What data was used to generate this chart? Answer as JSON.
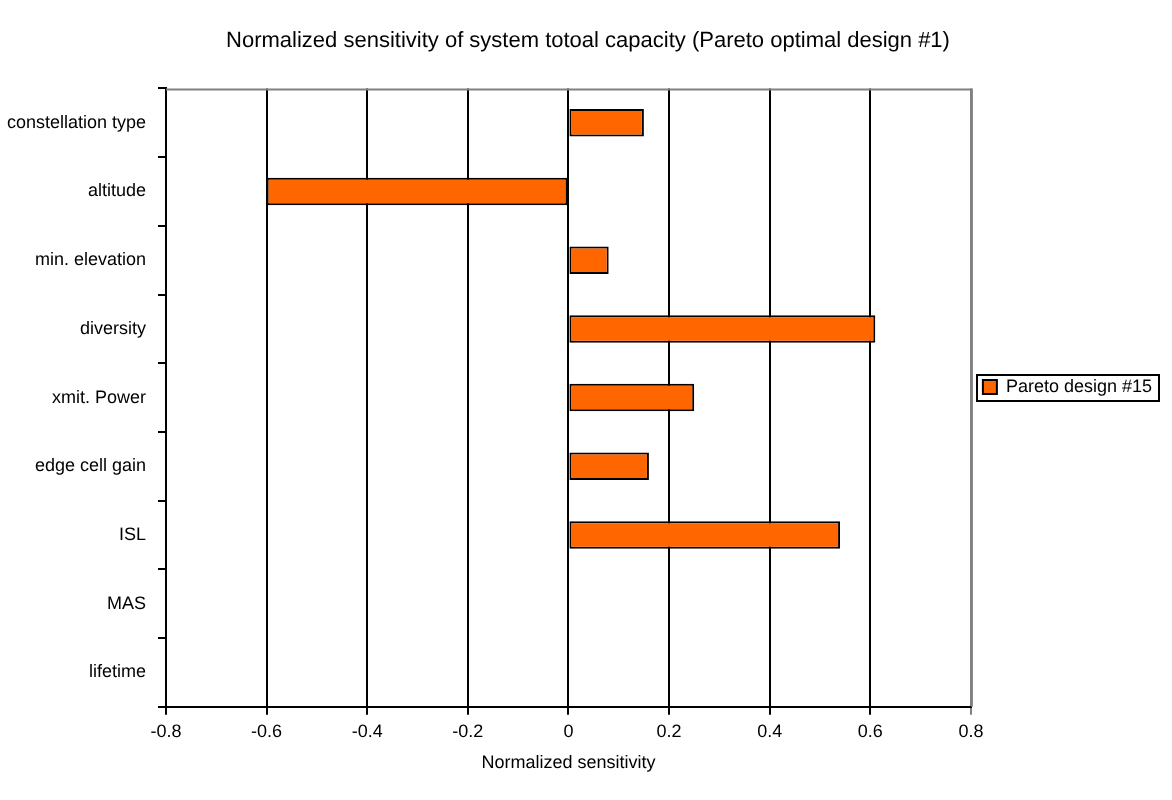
{
  "chart_data": {
    "type": "bar",
    "orientation": "horizontal",
    "title": "Normalized sensitivity of system totoal capacity (Pareto optimal design #1)",
    "xlabel": "Normalized sensitivity",
    "categories": [
      "constellation type",
      "altitude",
      "min. elevation",
      "diversity",
      "xmit. Power",
      "edge cell gain",
      "ISL",
      "MAS",
      "lifetime"
    ],
    "series": [
      {
        "name": "Pareto design #15",
        "color": "#ff6600",
        "values": [
          0.15,
          -0.6,
          0.08,
          0.61,
          0.25,
          0.16,
          0.54,
          0,
          0
        ]
      }
    ],
    "xlim": [
      -0.8,
      0.8
    ],
    "xticks": [
      -0.8,
      -0.6,
      -0.4,
      -0.2,
      0,
      0.2,
      0.4,
      0.6,
      0.8
    ],
    "grid": "x",
    "legend": "right"
  }
}
